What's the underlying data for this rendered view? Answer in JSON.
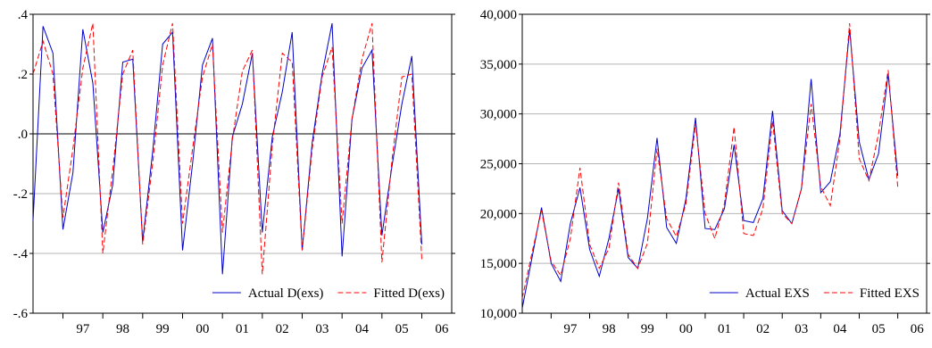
{
  "chart_data": [
    {
      "type": "line",
      "title": "",
      "xlabel": "",
      "ylabel": "",
      "ylim": [
        -0.6,
        0.4
      ],
      "yticks": [
        -0.6,
        -0.4,
        -0.2,
        0.0,
        0.2,
        0.4
      ],
      "ytick_labels": [
        "-.6",
        "-.4",
        "-.2",
        ".0",
        ".2",
        ".4"
      ],
      "xlim": [
        1996.25,
        2006.75
      ],
      "x_start": 1996.25,
      "x_step": 0.25,
      "x_tick_labels": [
        "97",
        "98",
        "99",
        "00",
        "01",
        "02",
        "03",
        "04",
        "05",
        "06"
      ],
      "grid": "horizontal",
      "zero_line": true,
      "legend": "bottom-right",
      "series": [
        {
          "name": "Actual D(exs)",
          "color": "#0000cc",
          "style": "solid",
          "values": [
            -0.29,
            0.36,
            0.27,
            -0.32,
            -0.13,
            0.35,
            0.17,
            -0.33,
            -0.17,
            0.24,
            0.25,
            -0.36,
            -0.06,
            0.3,
            0.34,
            -0.39,
            -0.1,
            0.23,
            0.32,
            -0.47,
            -0.01,
            0.1,
            0.27,
            -0.33,
            -0.01,
            0.14,
            0.34,
            -0.39,
            -0.03,
            0.2,
            0.37,
            -0.41,
            0.05,
            0.22,
            0.28,
            -0.34,
            -0.11,
            0.1,
            0.26,
            -0.37
          ]
        },
        {
          "name": "Fitted D(exs)",
          "color": "#ff0000",
          "style": "dashed",
          "values": [
            0.2,
            0.31,
            0.2,
            -0.28,
            -0.05,
            0.22,
            0.37,
            -0.4,
            -0.12,
            0.2,
            0.28,
            -0.37,
            -0.1,
            0.23,
            0.37,
            -0.3,
            -0.05,
            0.19,
            0.3,
            -0.33,
            -0.02,
            0.21,
            0.28,
            -0.47,
            -0.04,
            0.27,
            0.24,
            -0.39,
            -0.05,
            0.19,
            0.29,
            -0.3,
            0.05,
            0.25,
            0.37,
            -0.43,
            -0.09,
            0.19,
            0.2,
            -0.42
          ]
        }
      ]
    },
    {
      "type": "line",
      "title": "",
      "xlabel": "",
      "ylabel": "",
      "ylim": [
        10000,
        40000
      ],
      "yticks": [
        10000,
        15000,
        20000,
        25000,
        30000,
        35000,
        40000
      ],
      "ytick_labels": [
        "10,000",
        "15,000",
        "20,000",
        "25,000",
        "30,000",
        "35,000",
        "40,000"
      ],
      "xlim": [
        1996.25,
        2006.75
      ],
      "x_start": 1996.25,
      "x_step": 0.25,
      "x_tick_labels": [
        "97",
        "98",
        "99",
        "00",
        "01",
        "02",
        "03",
        "04",
        "05",
        "06"
      ],
      "grid": "horizontal",
      "zero_line": false,
      "legend": "bottom-right",
      "series": [
        {
          "name": "Actual EXS",
          "color": "#0000cc",
          "style": "solid",
          "values": [
            10500,
            15500,
            20600,
            15000,
            13200,
            19000,
            22600,
            16400,
            13700,
            17500,
            22500,
            15600,
            14500,
            19500,
            27600,
            18600,
            17000,
            21500,
            29600,
            18500,
            18400,
            20500,
            26900,
            19300,
            19100,
            21500,
            30300,
            20300,
            19000,
            22500,
            33500,
            22100,
            23200,
            28000,
            38500,
            27200,
            23400,
            26000,
            34000,
            23800
          ]
        },
        {
          "name": "Fitted EXS",
          "color": "#ff0000",
          "style": "dashed",
          "values": [
            11500,
            16000,
            20300,
            15200,
            13800,
            17500,
            24600,
            16900,
            14500,
            16500,
            23100,
            15900,
            14500,
            17000,
            26500,
            19500,
            17700,
            21000,
            29000,
            20000,
            17500,
            21000,
            28700,
            18000,
            17800,
            20500,
            29300,
            20000,
            19000,
            22500,
            31000,
            22700,
            20800,
            27500,
            39100,
            25500,
            23300,
            28000,
            34400,
            22700
          ]
        }
      ]
    }
  ]
}
